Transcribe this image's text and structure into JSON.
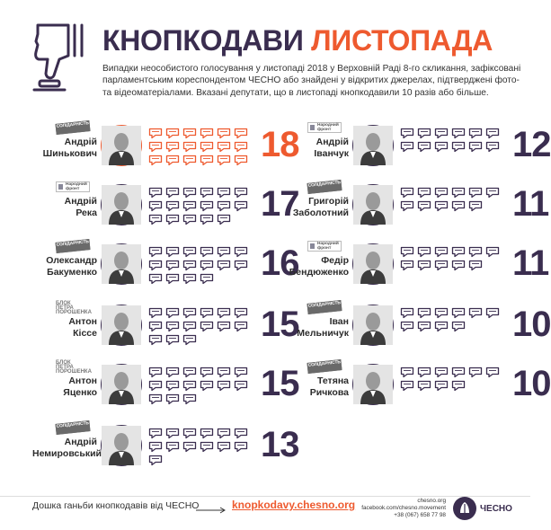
{
  "header": {
    "title_part1": "КНОПКОДАВИ",
    "title_part2": "ЛИСТОПАДА",
    "intro": "Випадки неособистого голосування у листопаді 2018 у Верховній Раді 8-го скликання, зафіксовані парламентським кореспондентом ЧЕСНО або знайдені у відкритих джерелах, підтверджені фото- та відеоматеріалами. Вказані депутати, що в листопаді кнопкодавили 10 разів або більше.",
    "icon": "thumbs-down-vote-button-icon"
  },
  "colors": {
    "accent": "#ee5a2f",
    "brand": "#3a2d4f"
  },
  "parties": {
    "sol": "СОЛІДАРНІСТЬ",
    "nf": "Народний фронт",
    "bpp": "БЛОК ПЕТРА ПОРОШЕНКА"
  },
  "deputies": [
    {
      "name1": "Андрій",
      "name2": "Шинькович",
      "count": 18,
      "party": "sol",
      "highlight": true
    },
    {
      "name1": "Андрій",
      "name2": "Река",
      "count": 17,
      "party": "nf",
      "highlight": false
    },
    {
      "name1": "Олександр",
      "name2": "Бакуменко",
      "count": 16,
      "party": "sol",
      "highlight": false
    },
    {
      "name1": "Антон",
      "name2": "Кіссе",
      "count": 15,
      "party": "bpp",
      "highlight": false
    },
    {
      "name1": "Антон",
      "name2": "Яценко",
      "count": 15,
      "party": "bpp",
      "highlight": false
    },
    {
      "name1": "Андрій",
      "name2": "Немировський",
      "count": 13,
      "party": "sol",
      "highlight": false
    },
    {
      "name1": "Андрій",
      "name2": "Іванчук",
      "count": 12,
      "party": "nf",
      "highlight": false
    },
    {
      "name1": "Григорій",
      "name2": "Заболотний",
      "count": 11,
      "party": "sol",
      "highlight": false
    },
    {
      "name1": "Федір",
      "name2": "Бендюженко",
      "count": 11,
      "party": "nf",
      "highlight": false
    },
    {
      "name1": "Іван",
      "name2": "Мельничук",
      "count": 10,
      "party": "sol",
      "highlight": false
    },
    {
      "name1": "Тетяна",
      "name2": "Ричкова",
      "count": 10,
      "party": "sol",
      "highlight": false
    }
  ],
  "footer": {
    "text": "Дошка ганьби кнопкодавів від ЧЕСНО",
    "link": "knopkodavy.chesno.org",
    "contact1": "chesno.org",
    "contact2": "facebook.com/chesno.movement",
    "contact3": "+38 (067) 658 77 98",
    "logo_text": "ЧЕСНО"
  }
}
